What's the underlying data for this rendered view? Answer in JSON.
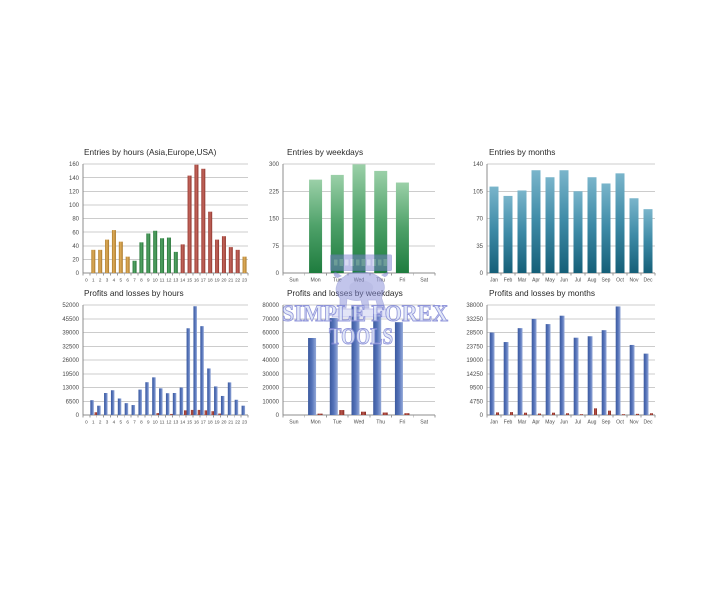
{
  "watermark": {
    "line1": "SIMPLE FOREX",
    "line2": "TOOLS",
    "text_fill": "#dde4f7",
    "text_outline": "#8187d5",
    "emblem_color": "#7d83d2"
  },
  "chart_data": [
    {
      "type": "bar",
      "title": "Entries by hours (Asia,Europe,USA)",
      "categories": [
        "0",
        "1",
        "2",
        "3",
        "4",
        "5",
        "6",
        "7",
        "8",
        "9",
        "10",
        "11",
        "12",
        "13",
        "14",
        "15",
        "16",
        "17",
        "18",
        "19",
        "20",
        "21",
        "22",
        "23"
      ],
      "values": [
        0,
        34,
        34,
        49,
        63,
        46,
        24,
        18,
        45,
        58,
        62,
        51,
        52,
        31,
        42,
        143,
        159,
        153,
        90,
        49,
        54,
        38,
        34,
        24
      ],
      "bar_colors": [
        "#d79a36",
        "#d79a36",
        "#d79a36",
        "#d79a36",
        "#d79a36",
        "#d79a36",
        "#d79a36",
        "#2e9044",
        "#2e9044",
        "#2e9044",
        "#2e9044",
        "#2e9044",
        "#2e9044",
        "#2e9044",
        "#b7453a",
        "#b7453a",
        "#b7453a",
        "#b7453a",
        "#b7453a",
        "#b7453a",
        "#b7453a",
        "#b7453a",
        "#b7453a",
        "#d79a36"
      ],
      "session_colors": {
        "asia": "#d79a36",
        "europe": "#2e9044",
        "usa": "#b7453a"
      },
      "ylim": [
        0,
        160
      ],
      "ytick": 20,
      "grid": true,
      "legend": "none"
    },
    {
      "type": "bar",
      "title": "Entries by weekdays",
      "categories": [
        "Sun",
        "Mon",
        "Tue",
        "Wed",
        "Thu",
        "Fri",
        "Sat"
      ],
      "values": [
        0,
        257,
        270,
        299,
        281,
        249,
        0
      ],
      "color_top": "#9bd0a8",
      "color_mid": "#4ea169",
      "color_bottom": "#1e7c3e",
      "ylim": [
        0,
        300
      ],
      "ytick": 75,
      "grid": true,
      "legend": "none"
    },
    {
      "type": "bar",
      "title": "Entries by months",
      "categories": [
        "Jan",
        "Feb",
        "Mar",
        "Apr",
        "May",
        "Jun",
        "Jul",
        "Aug",
        "Sep",
        "Oct",
        "Nov",
        "Dec"
      ],
      "values": [
        111,
        99,
        106,
        132,
        123,
        132,
        105,
        123,
        115,
        128,
        96,
        82
      ],
      "color_top": "#7ab5cb",
      "color_mid": "#3d8aa6",
      "color_bottom": "#155f78",
      "ylim": [
        0,
        140
      ],
      "ytick": 35,
      "grid": true,
      "legend": "none"
    },
    {
      "type": "bar",
      "title": "Profits and losses by hours",
      "categories": [
        "0",
        "1",
        "2",
        "3",
        "4",
        "5",
        "6",
        "7",
        "8",
        "9",
        "10",
        "11",
        "12",
        "13",
        "14",
        "15",
        "16",
        "17",
        "18",
        "19",
        "20",
        "21",
        "22",
        "23"
      ],
      "series": [
        {
          "name": "profits",
          "values": [
            0,
            7000,
            4400,
            10400,
            11700,
            7800,
            5600,
            4700,
            12000,
            15500,
            17800,
            12600,
            10300,
            10400,
            13000,
            41000,
            51400,
            42000,
            22000,
            13500,
            9000,
            15400,
            7200,
            4400
          ]
        },
        {
          "name": "losses",
          "values": [
            0,
            1300,
            0,
            0,
            0,
            0,
            0,
            0,
            0,
            0,
            900,
            0,
            500,
            0,
            2200,
            2400,
            2400,
            2200,
            1800,
            700,
            0,
            0,
            0,
            0
          ]
        }
      ],
      "profit_colors": [
        "#3b599e",
        "#5674ba",
        "#93a8d8"
      ],
      "loss_color": "#a93226",
      "ylim": [
        0,
        52000
      ],
      "ytick": 6500,
      "grid": true,
      "legend": "none"
    },
    {
      "type": "bar",
      "title": "Profits and losses by weekdays",
      "categories": [
        "Sun",
        "Mon",
        "Tue",
        "Wed",
        "Thu",
        "Fri",
        "Sat"
      ],
      "series": [
        {
          "name": "profits",
          "values": [
            0,
            56000,
            70500,
            79000,
            73500,
            67500,
            0
          ]
        },
        {
          "name": "losses",
          "values": [
            0,
            1000,
            3600,
            2400,
            1800,
            1300,
            0
          ]
        }
      ],
      "profit_colors": [
        "#3b599e",
        "#5674ba",
        "#93a8d8"
      ],
      "loss_color": "#a93226",
      "ylim": [
        0,
        80000
      ],
      "ytick": 10000,
      "grid": true,
      "legend": "none"
    },
    {
      "type": "bar",
      "title": "Profits and losses by months",
      "categories": [
        "Jan",
        "Feb",
        "Mar",
        "Apr",
        "May",
        "Jun",
        "Jul",
        "Aug",
        "Sep",
        "Oct",
        "Nov",
        "Dec"
      ],
      "series": [
        {
          "name": "profits",
          "values": [
            28500,
            25200,
            30000,
            33200,
            31400,
            34300,
            26700,
            27200,
            29300,
            37500,
            24200,
            21200
          ]
        },
        {
          "name": "losses",
          "values": [
            900,
            1000,
            800,
            500,
            800,
            600,
            250,
            2300,
            1500,
            150,
            400,
            600
          ]
        }
      ],
      "profit_colors": [
        "#3b599e",
        "#5674ba",
        "#93a8d8"
      ],
      "loss_color": "#a93226",
      "ylim": [
        0,
        38000
      ],
      "ytick": 4750,
      "grid": true,
      "legend": "none"
    }
  ]
}
